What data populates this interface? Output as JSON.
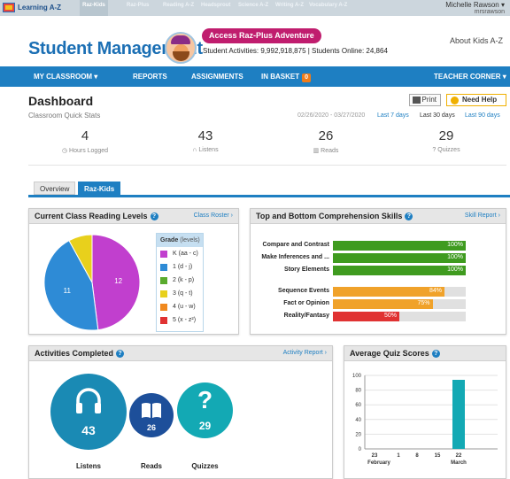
{
  "topbar": {
    "logo_text": "Learning A-Z",
    "brands": [
      "Raz-Kids",
      "Raz-Plus",
      "Reading A-Z",
      "Headsprout",
      "Science A-Z",
      "Writing A-Z",
      "Vocabulary A-Z"
    ],
    "user_name": "Michelle Rawson ▾",
    "user_login": "mrsrawson"
  },
  "header": {
    "title": "Student Management",
    "adventure_button": "Access Raz-Plus Adventure",
    "stats_line": "Student Activities: 9,992,918,875  |  Students Online: 24,864",
    "about": "About Kids A-Z"
  },
  "nav": {
    "items": [
      "MY CLASSROOM ▾",
      "REPORTS",
      "ASSIGNMENTS",
      "IN BASKET",
      "TEACHER CORNER ▾"
    ],
    "basket_count": "0"
  },
  "dashboard": {
    "title": "Dashboard",
    "subtitle": "Classroom Quick Stats",
    "print": "Print",
    "help": "Need Help",
    "date_range": "02/26/2020 - 03/27/2020",
    "ranges": [
      "Last 7 days",
      "Last 30 days",
      "Last 90 days"
    ],
    "selected_range": "Last 30 days"
  },
  "stats": [
    {
      "value": "4",
      "label": "Hours Logged",
      "icon": "clock-icon"
    },
    {
      "value": "43",
      "label": "Listens",
      "icon": "headphones-icon"
    },
    {
      "value": "26",
      "label": "Reads",
      "icon": "book-icon"
    },
    {
      "value": "29",
      "label": "Quizzes",
      "icon": "question-icon"
    }
  ],
  "tabs": [
    "Overview",
    "Raz-Kids"
  ],
  "active_tab": "Raz-Kids",
  "reading_levels": {
    "title": "Current Class Reading Levels",
    "link": "Class Roster ›",
    "legend_title": "Grade",
    "legend_sub": "(levels)",
    "grades": [
      {
        "label": "K (aa - c)",
        "color": "#c13fce"
      },
      {
        "label": "1 (d - j)",
        "color": "#2e8bd6"
      },
      {
        "label": "2 (k - p)",
        "color": "#5aab2e"
      },
      {
        "label": "3 (q - t)",
        "color": "#e8d01c"
      },
      {
        "label": "4 (u - w)",
        "color": "#f0891e"
      },
      {
        "label": "5 (x - z²)",
        "color": "#e03232"
      }
    ]
  },
  "skills": {
    "title": "Top and Bottom Comprehension Skills",
    "link": "Skill Report ›",
    "items": [
      {
        "name": "Compare and Contrast",
        "pct": "100%",
        "value": 100,
        "color": "#3f9b1f"
      },
      {
        "name": "Make Inferences and ...",
        "pct": "100%",
        "value": 100,
        "color": "#3f9b1f"
      },
      {
        "name": "Story Elements",
        "pct": "100%",
        "value": 100,
        "color": "#3f9b1f"
      },
      {
        "name": "Sequence Events",
        "pct": "84%",
        "value": 84,
        "color": "#f0a22a"
      },
      {
        "name": "Fact or Opinion",
        "pct": "75%",
        "value": 75,
        "color": "#f0a22a"
      },
      {
        "name": "Reality/Fantasy",
        "pct": "50%",
        "value": 50,
        "color": "#e03232"
      }
    ]
  },
  "activities": {
    "title": "Activities Completed",
    "link": "Activity Report ›",
    "items": [
      {
        "label": "Listens",
        "value": "43",
        "color": "#1a8ab4"
      },
      {
        "label": "Reads",
        "value": "26",
        "color": "#1d4f9a"
      },
      {
        "label": "Quizzes",
        "value": "29",
        "color": "#13a9b4"
      }
    ]
  },
  "quiz": {
    "title": "Average Quiz Scores"
  },
  "chart_data": [
    {
      "type": "pie",
      "title": "Current Class Reading Levels",
      "categories": [
        "K (aa - c)",
        "1 (d - j)",
        "3 (q - t)"
      ],
      "values": [
        12,
        11,
        2
      ],
      "colors": [
        "#c13fce",
        "#2e8bd6",
        "#e8d01c"
      ],
      "labels": [
        "12",
        "11",
        ""
      ]
    },
    {
      "type": "bar",
      "title": "Average Quiz Scores",
      "categories": [
        "23",
        "1",
        "8",
        "15",
        "22"
      ],
      "month_labels": [
        "February",
        "March"
      ],
      "values": [
        0,
        0,
        0,
        0,
        94
      ],
      "ylim": [
        0,
        100
      ],
      "yticks": [
        "100",
        "80",
        "60",
        "40",
        "20",
        "0"
      ],
      "grid": true,
      "color": "#13a9b4"
    }
  ]
}
